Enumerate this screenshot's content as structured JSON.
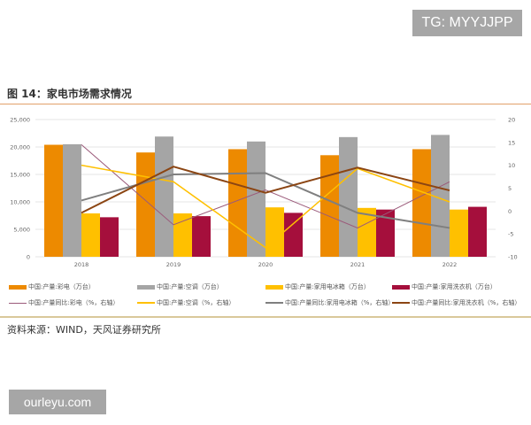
{
  "watermark_top": "TG: MYYJJPP",
  "watermark_bottom": "ourleyu.com",
  "figure_title": "图 14：家电市场需求情况",
  "source": "资料来源：WIND，天风证券研究所",
  "chart_data": {
    "type": "bar+line",
    "categories": [
      "2018",
      "2019",
      "2020",
      "2021",
      "2022"
    ],
    "left_axis": {
      "min": 0,
      "max": 25000,
      "ticks": [
        "0",
        "5,000",
        "10,000",
        "15,000",
        "20,000",
        "25,000"
      ]
    },
    "right_axis": {
      "min": -10,
      "max": 20,
      "ticks": [
        "-10",
        "-5",
        "0",
        "5",
        "10",
        "15",
        "20"
      ]
    },
    "grid": true,
    "legend_position": "bottom",
    "bar_series": [
      {
        "name": "中国:产量:彩电（万台）",
        "color": "#ed8a00",
        "values": [
          20400,
          19000,
          19600,
          18500,
          19600
        ]
      },
      {
        "name": "中国:产量:空调（万台）",
        "color": "#a5a5a5",
        "values": [
          20500,
          21900,
          21000,
          21800,
          22200
        ]
      },
      {
        "name": "中国:产量:家用电冰箱（万台）",
        "color": "#ffc000",
        "values": [
          7900,
          7900,
          9000,
          8900,
          8600
        ]
      },
      {
        "name": "中国:产量:家用洗衣机（万台）",
        "color": "#a50f3c",
        "values": [
          7200,
          7400,
          8000,
          8600,
          9100
        ]
      }
    ],
    "line_series": [
      {
        "name": "中国:产量同比:彩电（%，右轴）",
        "color": "#9b5a7a",
        "width": 1,
        "values": [
          14.5,
          -3,
          4.6,
          -3.7,
          6.4
        ]
      },
      {
        "name": "中国:产量:空调（%，右轴）",
        "color": "#ffc000",
        "width": 1.5,
        "values": [
          10,
          6.4,
          -8,
          9.3,
          2
        ]
      },
      {
        "name": "中国:产量同比:家用电冰箱（%，右轴）",
        "color": "#7f7f7f",
        "width": 2,
        "values": [
          2.3,
          8,
          8.3,
          -0.4,
          -3.7
        ]
      },
      {
        "name": "中国:产量同比:家用洗衣机（%，右轴）",
        "color": "#8b4513",
        "width": 2,
        "values": [
          -0.4,
          9.7,
          4,
          9.5,
          4.5
        ]
      }
    ]
  }
}
